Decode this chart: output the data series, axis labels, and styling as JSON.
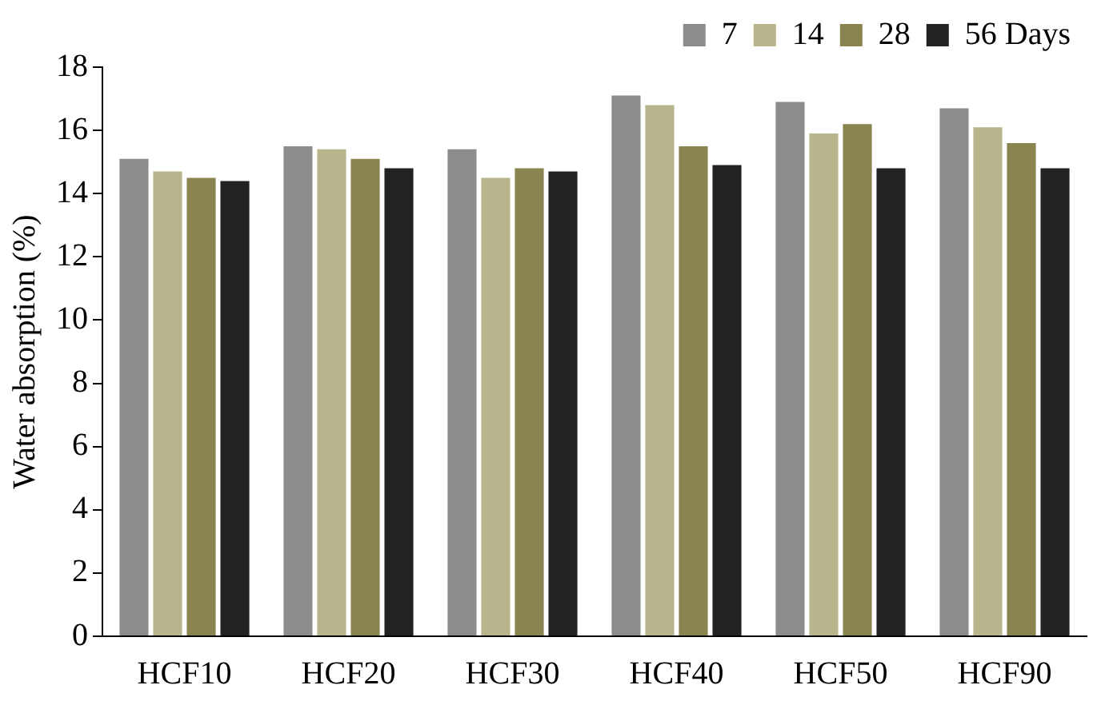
{
  "chart_data": {
    "type": "bar",
    "ylabel": "Water absorption (%)",
    "categories": [
      "HCF10",
      "HCF20",
      "HCF30",
      "HCF40",
      "HCF50",
      "HCF90"
    ],
    "series": [
      {
        "name": "7",
        "color": "#8c8c8c",
        "values": [
          15.1,
          15.5,
          15.4,
          17.1,
          16.9,
          16.7
        ]
      },
      {
        "name": "14",
        "color": "#b8b48c",
        "values": [
          14.7,
          15.4,
          14.5,
          16.8,
          15.9,
          16.1
        ]
      },
      {
        "name": "28",
        "color": "#8a8450",
        "values": [
          14.5,
          15.1,
          14.8,
          15.5,
          16.2,
          15.6
        ]
      },
      {
        "name": "56 Days",
        "color": "#222222",
        "values": [
          14.4,
          14.8,
          14.7,
          14.9,
          14.8,
          14.8
        ]
      }
    ],
    "ylim": [
      0,
      18
    ],
    "yticks": [
      0,
      2,
      4,
      6,
      8,
      10,
      12,
      14,
      16,
      18
    ],
    "grid": false,
    "legend": "top right"
  }
}
